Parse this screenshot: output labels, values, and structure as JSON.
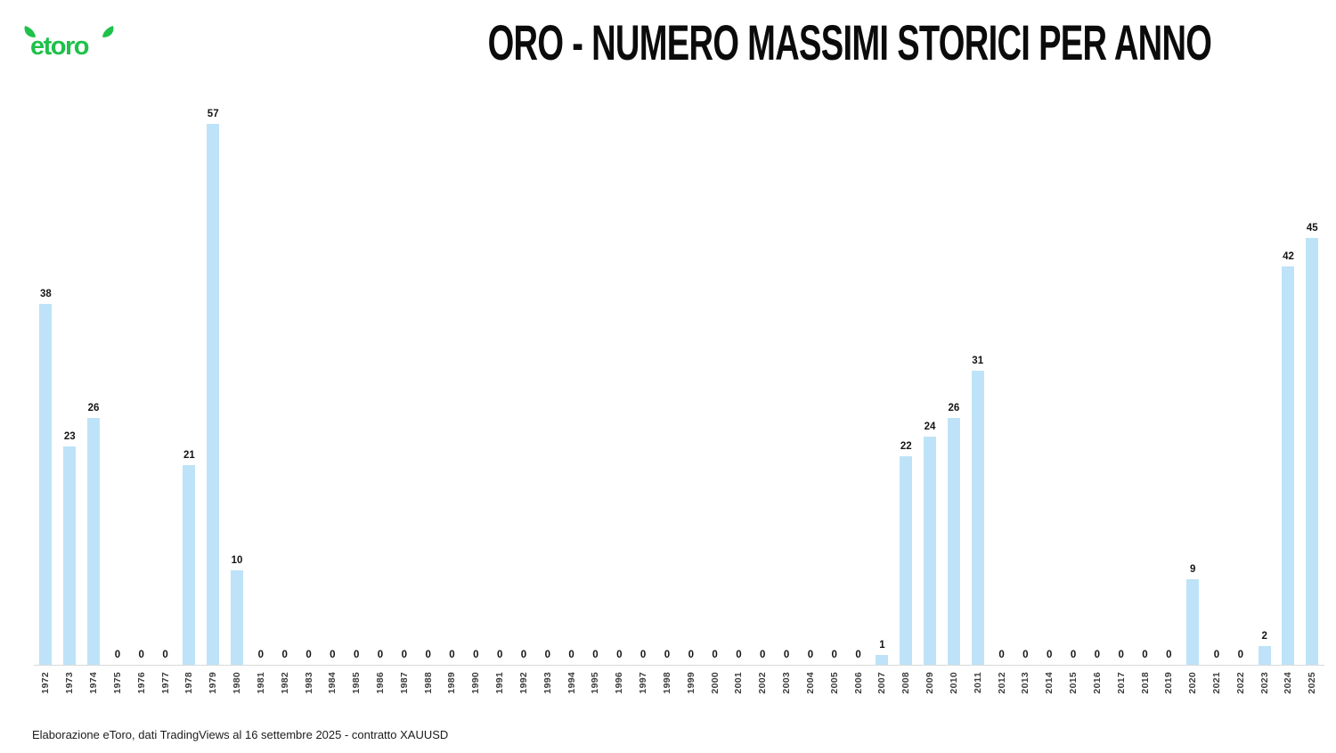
{
  "header": {
    "logo_text": "etoro",
    "logo_color": "#1EC14A"
  },
  "footer": {
    "source_note": "Elaborazione eToro, dati TradingViews al 16 settembre 2025 - contratto XAUUSD"
  },
  "colors": {
    "bar": "#BEE3F8",
    "title_text": "#0B0B0B",
    "value_label": "#151515",
    "year_label": "#3D3D3D",
    "axis_line": "#DADADA",
    "background": "#FFFFFF",
    "logo_green": "#1EC14A"
  },
  "chart_data": {
    "type": "bar",
    "title": "ORO - NUMERO MASSIMI STORICI PER ANNO",
    "xlabel": "",
    "ylabel": "",
    "ylim": [
      0,
      57
    ],
    "grid": false,
    "legend": false,
    "value_labels_shown": true,
    "x_tick_rotation_degrees": 90,
    "bar_color": "#BEE3F8",
    "categories": [
      "1972",
      "1973",
      "1974",
      "1975",
      "1976",
      "1977",
      "1978",
      "1979",
      "1980",
      "1981",
      "1982",
      "1983",
      "1984",
      "1985",
      "1986",
      "1987",
      "1988",
      "1989",
      "1990",
      "1991",
      "1992",
      "1993",
      "1994",
      "1995",
      "1996",
      "1997",
      "1998",
      "1999",
      "2000",
      "2001",
      "2002",
      "2003",
      "2004",
      "2005",
      "2006",
      "2007",
      "2008",
      "2009",
      "2010",
      "2011",
      "2012",
      "2013",
      "2014",
      "2015",
      "2016",
      "2017",
      "2018",
      "2019",
      "2020",
      "2021",
      "2022",
      "2023",
      "2024",
      "2025"
    ],
    "values": [
      38,
      23,
      26,
      0,
      0,
      0,
      21,
      57,
      10,
      0,
      0,
      0,
      0,
      0,
      0,
      0,
      0,
      0,
      0,
      0,
      0,
      0,
      0,
      0,
      0,
      0,
      0,
      0,
      0,
      0,
      0,
      0,
      0,
      0,
      0,
      1,
      22,
      24,
      26,
      31,
      0,
      0,
      0,
      0,
      0,
      0,
      0,
      0,
      9,
      0,
      0,
      2,
      42,
      45
    ]
  }
}
